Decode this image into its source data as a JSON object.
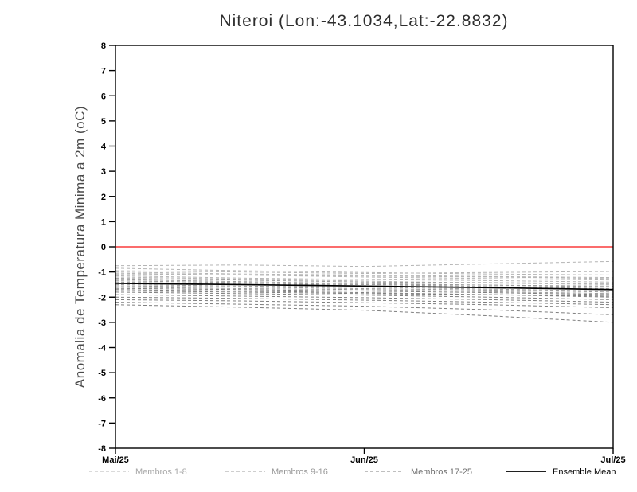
{
  "chart_data": {
    "type": "line",
    "title": "Niteroi (Lon:-43.1034,Lat:-22.8832)",
    "xlabel": "",
    "ylabel": "Anomalia de Temperatura Minima a 2m (oC)",
    "ylim": [
      -8,
      8
    ],
    "y_tick_step": 1,
    "xlim": [
      0,
      2
    ],
    "grid": false,
    "x_ticks": [
      {
        "pos": 0,
        "label": "Mai/25"
      },
      {
        "pos": 1,
        "label": "Jun/25"
      },
      {
        "pos": 2,
        "label": "Jul/25"
      }
    ],
    "zero_line": {
      "value": 0,
      "color": "#fa3c3c"
    },
    "axis_color": "#000000",
    "legend": [
      {
        "label": "Membros 1-8",
        "style": "dashed",
        "color": "#b4b4b4",
        "text_color": "#a8a8a8"
      },
      {
        "label": "Membros 9-16",
        "style": "dashed",
        "color": "#9c9c9c",
        "text_color": "#989898"
      },
      {
        "label": "Membros 17-25",
        "style": "dashed",
        "color": "#7f7f7f",
        "text_color": "#6f6f6f"
      },
      {
        "label": "Ensemble Mean",
        "style": "solid",
        "color": "#000000",
        "text_color": "#000000"
      }
    ],
    "x": [
      0,
      0.5,
      1,
      1.5,
      2
    ],
    "members": [
      {
        "name": "Membro 1",
        "group": 0,
        "values": [
          -0.75,
          -0.72,
          -0.78,
          -0.68,
          -0.58
        ]
      },
      {
        "name": "Membro 2",
        "group": 0,
        "values": [
          -0.85,
          -0.95,
          -1.02,
          -1.08,
          -1.12
        ]
      },
      {
        "name": "Membro 3",
        "group": 0,
        "values": [
          -0.95,
          -1.0,
          -1.06,
          -1.02,
          -0.98
        ]
      },
      {
        "name": "Membro 4",
        "group": 0,
        "values": [
          -1.0,
          -1.08,
          -1.12,
          -1.18,
          -1.22
        ]
      },
      {
        "name": "Membro 5",
        "group": 0,
        "values": [
          -1.05,
          -1.12,
          -1.2,
          -1.26,
          -1.32
        ]
      },
      {
        "name": "Membro 6",
        "group": 0,
        "values": [
          -1.1,
          -1.12,
          -1.16,
          -1.2,
          -1.26
        ]
      },
      {
        "name": "Membro 7",
        "group": 0,
        "values": [
          -1.15,
          -1.24,
          -1.3,
          -1.34,
          -1.4
        ]
      },
      {
        "name": "Membro 8",
        "group": 0,
        "values": [
          -1.2,
          -1.28,
          -1.36,
          -1.44,
          -1.5
        ]
      },
      {
        "name": "Membro 9",
        "group": 1,
        "values": [
          -1.25,
          -1.32,
          -1.4,
          -1.42,
          -1.46
        ]
      },
      {
        "name": "Membro 10",
        "group": 1,
        "values": [
          -1.3,
          -1.38,
          -1.46,
          -1.52,
          -1.6
        ]
      },
      {
        "name": "Membro 11",
        "group": 1,
        "values": [
          -1.35,
          -1.42,
          -1.5,
          -1.52,
          -1.56
        ]
      },
      {
        "name": "Membro 12",
        "group": 1,
        "values": [
          -1.4,
          -1.48,
          -1.56,
          -1.62,
          -1.7
        ]
      },
      {
        "name": "Membro 13",
        "group": 1,
        "values": [
          -1.45,
          -1.48,
          -1.5,
          -1.58,
          -1.66
        ]
      },
      {
        "name": "Membro 14",
        "group": 1,
        "values": [
          -1.5,
          -1.56,
          -1.6,
          -1.68,
          -1.76
        ]
      },
      {
        "name": "Membro 15",
        "group": 1,
        "values": [
          -1.55,
          -1.6,
          -1.66,
          -1.72,
          -1.8
        ]
      },
      {
        "name": "Membro 16",
        "group": 1,
        "values": [
          -1.6,
          -1.66,
          -1.7,
          -1.78,
          -1.86
        ]
      },
      {
        "name": "Membro 17",
        "group": 2,
        "values": [
          -1.65,
          -1.7,
          -1.76,
          -1.82,
          -1.9
        ]
      },
      {
        "name": "Membro 18",
        "group": 2,
        "values": [
          -1.7,
          -1.76,
          -1.82,
          -1.9,
          -2.0
        ]
      },
      {
        "name": "Membro 19",
        "group": 2,
        "values": [
          -1.75,
          -1.8,
          -1.86,
          -1.9,
          -1.96
        ]
      },
      {
        "name": "Membro 20",
        "group": 2,
        "values": [
          -1.8,
          -1.86,
          -1.92,
          -2.0,
          -2.1
        ]
      },
      {
        "name": "Membro 21",
        "group": 2,
        "values": [
          -1.9,
          -1.96,
          -2.02,
          -2.1,
          -2.2
        ]
      },
      {
        "name": "Membro 22",
        "group": 2,
        "values": [
          -2.0,
          -2.05,
          -2.12,
          -2.2,
          -2.3
        ]
      },
      {
        "name": "Membro 23",
        "group": 2,
        "values": [
          -2.1,
          -2.15,
          -2.22,
          -2.3,
          -2.42
        ]
      },
      {
        "name": "Membro 24",
        "group": 2,
        "values": [
          -2.2,
          -2.28,
          -2.36,
          -2.5,
          -2.7
        ]
      },
      {
        "name": "Membro 25",
        "group": 2,
        "values": [
          -2.3,
          -2.4,
          -2.52,
          -2.74,
          -3.0
        ]
      }
    ],
    "ensemble_mean": {
      "name": "Ensemble Mean",
      "values": [
        -1.45,
        -1.5,
        -1.56,
        -1.62,
        -1.7
      ]
    }
  }
}
